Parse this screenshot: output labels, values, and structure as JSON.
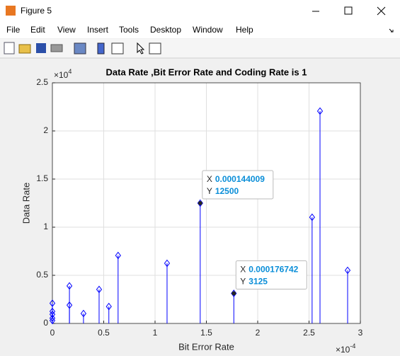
{
  "window": {
    "title": "Figure 5",
    "menu": [
      "File",
      "Edit",
      "View",
      "Insert",
      "Tools",
      "Desktop",
      "Window",
      "Help"
    ]
  },
  "chart_data": {
    "type": "stem",
    "title": "Data Rate ,Bit Error Rate and Coding Rate is 1",
    "x_label": "Bit Error Rate",
    "y_label": "Data Rate",
    "x_exponent": {
      "base": "×10",
      "power": "-4"
    },
    "y_exponent": {
      "base": "×10",
      "power": "4"
    },
    "xlim": [
      0,
      0.0003
    ],
    "ylim": [
      0,
      25000
    ],
    "xticks": [
      0,
      {
        "value": 5e-05,
        "label": "0.5"
      },
      {
        "value": 0.0001,
        "label": "1"
      },
      {
        "value": 0.00015,
        "label": "1.5"
      },
      {
        "value": 0.0002,
        "label": "2"
      },
      {
        "value": 0.00025,
        "label": "2.5"
      },
      {
        "value": 0.0003,
        "label": "3"
      }
    ],
    "yticks": [
      0,
      {
        "value": 5000,
        "label": "0.5"
      },
      {
        "value": 10000,
        "label": "1"
      },
      {
        "value": 15000,
        "label": "1.5"
      },
      {
        "value": 20000,
        "label": "2"
      },
      {
        "value": 25000,
        "label": "2.5"
      }
    ],
    "grid": true,
    "color": "#0000ff",
    "x": [
      0,
      0,
      0,
      0,
      0,
      1.66e-05,
      1.66e-05,
      3.03e-05,
      4.55e-05,
      5.5e-05,
      6.4e-05,
      0.0001117,
      0.000144009,
      0.000176742,
      0.000253,
      0.0002607,
      0.0002876
    ],
    "values": [
      2100,
      1250,
      950,
      550,
      300,
      3900,
      1900,
      1030,
      3530,
      1760,
      7060,
      6250,
      12500,
      3125,
      11030,
      22060,
      5515
    ],
    "datatips": [
      {
        "x_name": "X",
        "x": 0.000144009,
        "y_name": "Y",
        "y": 12500
      },
      {
        "x_name": "X",
        "x": 0.000176742,
        "y_name": "Y",
        "y": 3125
      }
    ]
  }
}
